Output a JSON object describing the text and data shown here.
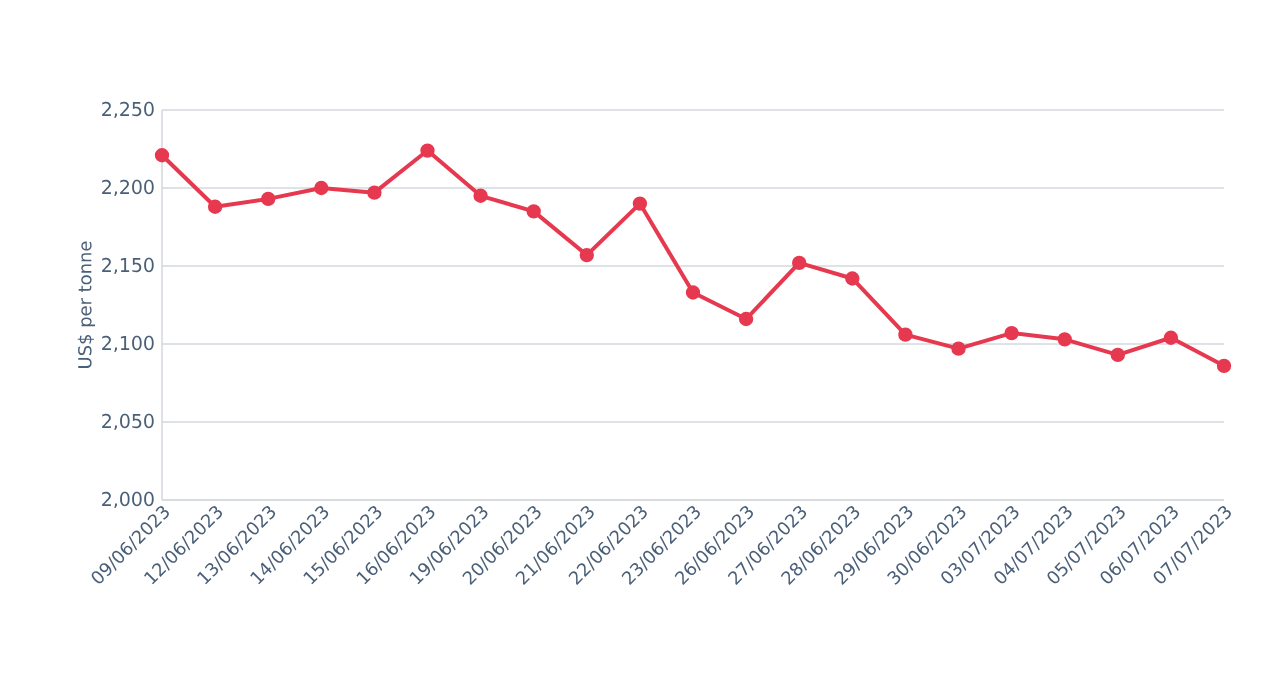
{
  "chart_data": {
    "type": "line",
    "ylabel": "US$ per tonne",
    "categories": [
      "09/06/2023",
      "12/06/2023",
      "13/06/2023",
      "14/06/2023",
      "15/06/2023",
      "16/06/2023",
      "19/06/2023",
      "20/06/2023",
      "21/06/2023",
      "22/06/2023",
      "23/06/2023",
      "26/06/2023",
      "27/06/2023",
      "28/06/2023",
      "29/06/2023",
      "30/06/2023",
      "03/07/2023",
      "04/07/2023",
      "05/07/2023",
      "06/07/2023",
      "07/07/2023"
    ],
    "series": [
      {
        "color": "#e63950",
        "values": [
          2221,
          2188,
          2193,
          2200,
          2197,
          2224,
          2195,
          2185,
          2157,
          2190,
          2133,
          2116,
          2152,
          2142,
          2106,
          2097,
          2107,
          2103,
          2093,
          2104,
          2086
        ]
      }
    ],
    "ylim": [
      2000,
      2250
    ],
    "yticks": [
      {
        "value": 2000,
        "label": "2,000"
      },
      {
        "value": 2050,
        "label": "2,050"
      },
      {
        "value": 2100,
        "label": "2,100"
      },
      {
        "value": 2150,
        "label": "2,150"
      },
      {
        "value": 2200,
        "label": "2,200"
      },
      {
        "value": 2250,
        "label": "2,250"
      }
    ],
    "grid": "y",
    "marker": "circle",
    "line_style": "solid"
  }
}
